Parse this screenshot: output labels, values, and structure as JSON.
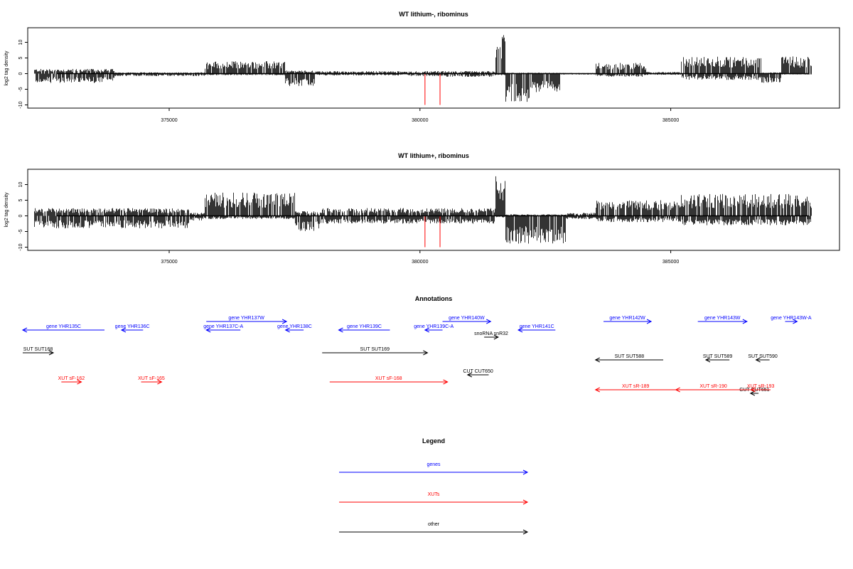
{
  "colors": {
    "gene": "#0000ff",
    "xut": "#ff0000",
    "other": "#000000",
    "marker": "#ff0000"
  },
  "chart_data": [
    {
      "type": "bar",
      "title": "WT lithium-, ribominus",
      "ylabel": "log2 tag density",
      "xlim": [
        372000,
        388100
      ],
      "ylim": [
        -10,
        15
      ],
      "yticks": [
        -10,
        -5,
        0,
        5,
        10
      ],
      "xticks": [
        375000,
        380000,
        385000
      ],
      "marker_positions": [
        380100,
        380400
      ],
      "profile": [
        {
          "from": 372300,
          "to": 373900,
          "pos": 1.5,
          "neg": -3
        },
        {
          "from": 373900,
          "to": 375700,
          "pos": 0.4,
          "neg": -0.8
        },
        {
          "from": 375700,
          "to": 377300,
          "pos": 4,
          "neg": -0.5
        },
        {
          "from": 377300,
          "to": 377900,
          "pos": 1,
          "neg": -4
        },
        {
          "from": 377900,
          "to": 379800,
          "pos": 0.8,
          "neg": -0.6
        },
        {
          "from": 379800,
          "to": 380500,
          "pos": 0.8,
          "neg": -0.8
        },
        {
          "from": 380500,
          "to": 381500,
          "pos": 0.8,
          "neg": -1
        },
        {
          "from": 381500,
          "to": 381700,
          "pos": 13,
          "neg": -0.5
        },
        {
          "from": 381700,
          "to": 382200,
          "pos": 0.3,
          "neg": -9
        },
        {
          "from": 382200,
          "to": 382800,
          "pos": 0.3,
          "neg": -6
        },
        {
          "from": 382800,
          "to": 383500,
          "pos": 0.2,
          "neg": -0.3
        },
        {
          "from": 383500,
          "to": 384500,
          "pos": 3.5,
          "neg": -1
        },
        {
          "from": 384500,
          "to": 385200,
          "pos": 0.5,
          "neg": -0.4
        },
        {
          "from": 385200,
          "to": 386800,
          "pos": 5.5,
          "neg": -2
        },
        {
          "from": 386800,
          "to": 387200,
          "pos": 0.4,
          "neg": -3
        },
        {
          "from": 387200,
          "to": 387800,
          "pos": 5.5,
          "neg": -0.3
        }
      ]
    },
    {
      "type": "bar",
      "title": "WT lithium+, ribominus",
      "ylabel": "log2 tag density",
      "xlim": [
        372000,
        388100
      ],
      "ylim": [
        -10,
        15
      ],
      "yticks": [
        -10,
        -5,
        0,
        5,
        10
      ],
      "xticks": [
        375000,
        380000,
        385000
      ],
      "marker_positions": [
        380100,
        380400
      ],
      "profile": [
        {
          "from": 372300,
          "to": 375400,
          "pos": 2.5,
          "neg": -4
        },
        {
          "from": 375400,
          "to": 375700,
          "pos": 1,
          "neg": -1.5
        },
        {
          "from": 375700,
          "to": 377500,
          "pos": 7.5,
          "neg": -1
        },
        {
          "from": 377500,
          "to": 378000,
          "pos": 1.5,
          "neg": -5
        },
        {
          "from": 378000,
          "to": 381500,
          "pos": 2.5,
          "neg": -2.5
        },
        {
          "from": 381500,
          "to": 381700,
          "pos": 13,
          "neg": -0.5
        },
        {
          "from": 381700,
          "to": 382900,
          "pos": 0.5,
          "neg": -9
        },
        {
          "from": 382900,
          "to": 383500,
          "pos": 1,
          "neg": -1
        },
        {
          "from": 383500,
          "to": 385200,
          "pos": 5,
          "neg": -2
        },
        {
          "from": 385200,
          "to": 387800,
          "pos": 7,
          "neg": -3
        }
      ]
    }
  ],
  "annotations": {
    "title": "Annotations",
    "features": [
      {
        "label": "gene YHR135C",
        "kind": "gene",
        "row": 1,
        "start": 372080,
        "end": 373710,
        "dir": "left"
      },
      {
        "label": "gene YHR136C",
        "kind": "gene",
        "row": 1,
        "start": 374050,
        "end": 374480,
        "dir": "left"
      },
      {
        "label": "gene YHR137W",
        "kind": "gene",
        "row": 0,
        "start": 375740,
        "end": 377340,
        "dir": "right"
      },
      {
        "label": "gene YHR137C-A",
        "kind": "gene",
        "row": 1,
        "start": 375740,
        "end": 376420,
        "dir": "left"
      },
      {
        "label": "gene YHR138C",
        "kind": "gene",
        "row": 1,
        "start": 377320,
        "end": 377680,
        "dir": "left"
      },
      {
        "label": "gene YHR139C",
        "kind": "gene",
        "row": 1,
        "start": 378380,
        "end": 379400,
        "dir": "left"
      },
      {
        "label": "gene YHR139C-A",
        "kind": "gene",
        "row": 1,
        "start": 380100,
        "end": 380450,
        "dir": "left"
      },
      {
        "label": "gene YHR140W",
        "kind": "gene",
        "row": 0,
        "start": 380450,
        "end": 381410,
        "dir": "right"
      },
      {
        "label": "gene YHR141C",
        "kind": "gene",
        "row": 1,
        "start": 381960,
        "end": 382700,
        "dir": "left"
      },
      {
        "label": "gene YHR142W",
        "kind": "gene",
        "row": 0,
        "start": 383660,
        "end": 384610,
        "dir": "right"
      },
      {
        "label": "gene YHR143W",
        "kind": "gene",
        "row": 0,
        "start": 385540,
        "end": 386520,
        "dir": "right"
      },
      {
        "label": "gene YHR143W-A",
        "kind": "gene",
        "row": 0,
        "start": 387280,
        "end": 387520,
        "dir": "right"
      },
      {
        "label": "snoRNA snR32",
        "kind": "other",
        "row": 2,
        "start": 381280,
        "end": 381560,
        "dir": "right"
      },
      {
        "label": "SUT SUT168",
        "kind": "other",
        "row": 3,
        "start": 372080,
        "end": 372690,
        "dir": "right"
      },
      {
        "label": "SUT SUT169",
        "kind": "other",
        "row": 3,
        "start": 378050,
        "end": 380150,
        "dir": "right"
      },
      {
        "label": "SUT SUT588",
        "kind": "other",
        "row": 4,
        "start": 383500,
        "end": 384850,
        "dir": "left"
      },
      {
        "label": "SUT SUT589",
        "kind": "other",
        "row": 4,
        "start": 385700,
        "end": 386170,
        "dir": "left"
      },
      {
        "label": "SUT SUT590",
        "kind": "other",
        "row": 4,
        "start": 386700,
        "end": 386970,
        "dir": "left"
      },
      {
        "label": "CUT CUT650",
        "kind": "other",
        "row": 5,
        "start": 380950,
        "end": 381370,
        "dir": "left"
      },
      {
        "label": "CUT CUT651",
        "kind": "other",
        "row": 6,
        "start": 386590,
        "end": 386750,
        "dir": "left"
      },
      {
        "label": "XUT sF-162",
        "kind": "xut",
        "row": 7,
        "start": 372850,
        "end": 373250,
        "dir": "right"
      },
      {
        "label": "XUT sF-165",
        "kind": "xut",
        "row": 7,
        "start": 374440,
        "end": 374850,
        "dir": "right"
      },
      {
        "label": "XUT sF-168",
        "kind": "xut",
        "row": 7,
        "start": 378200,
        "end": 380550,
        "dir": "right"
      },
      {
        "label": "XUT sR-189",
        "kind": "xut",
        "row": 8,
        "start": 383500,
        "end": 385100,
        "dir": "left"
      },
      {
        "label": "XUT sR-190",
        "kind": "xut",
        "row": 8,
        "start": 385100,
        "end": 386600,
        "dir": "left"
      },
      {
        "label": "XUT sR-193",
        "kind": "xut",
        "row": 8,
        "start": 386600,
        "end": 386990,
        "dir": "left"
      }
    ]
  },
  "legend": {
    "title": "Legend",
    "items": [
      {
        "label": "genes",
        "kind": "gene"
      },
      {
        "label": "XUTs",
        "kind": "xut"
      },
      {
        "label": "other",
        "kind": "other"
      }
    ]
  }
}
